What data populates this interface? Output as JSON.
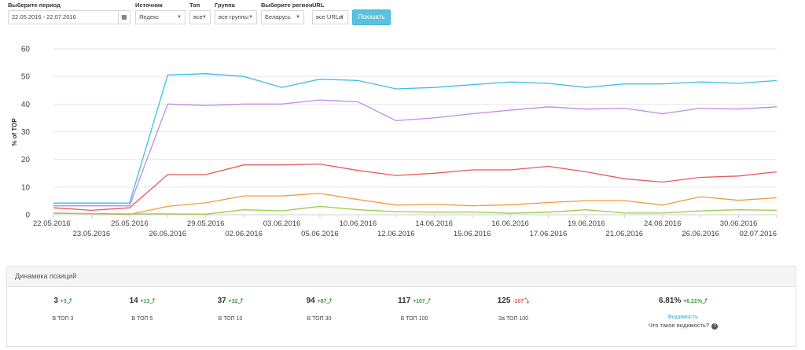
{
  "filters": {
    "period": {
      "label": "Выберите период",
      "value": "22.05.2016 - 22.07.2016"
    },
    "source": {
      "label": "Источник",
      "value": "Яндекс"
    },
    "top": {
      "label": "Топ",
      "value": "все"
    },
    "group": {
      "label": "Группа",
      "value": "все группы"
    },
    "region": {
      "label": "Выберите регион",
      "value": "Беларусь"
    },
    "url": {
      "label": "URL",
      "value": "все URLы"
    },
    "show_button": "Показать"
  },
  "chart_data": {
    "type": "line",
    "ylabel": "% of TOP",
    "ylim": [
      0,
      60
    ],
    "yticks": [
      0,
      10,
      20,
      30,
      40,
      50,
      60
    ],
    "grid": "horizontal",
    "x": [
      "22.05.2016",
      "23.05.2016",
      "25.05.2016",
      "26.05.2016",
      "29.05.2016",
      "02.06.2016",
      "03.06.2016",
      "05.06.2016",
      "10.06.2016",
      "12.06.2016",
      "14.06.2016",
      "15.06.2016",
      "16.06.2016",
      "17.06.2016",
      "19.06.2016",
      "21.06.2016",
      "24.06.2016",
      "26.06.2016",
      "30.06.2016",
      "02.07.2016"
    ],
    "series": [
      {
        "color": "#3dbfe6",
        "values": [
          4.2,
          4.2,
          4.2,
          50.5,
          51,
          50,
          46,
          49,
          48.5,
          45.5,
          46,
          47,
          48,
          47.5,
          46,
          47.3,
          47.3,
          48,
          47.5,
          48.5
        ]
      },
      {
        "color": "#c189e6",
        "values": [
          3.2,
          3.2,
          3.2,
          40,
          39.5,
          40,
          40,
          41.5,
          40.8,
          34,
          35,
          36.5,
          37.8,
          39,
          38.2,
          38.5,
          36.5,
          38.5,
          38.2,
          39
        ]
      },
      {
        "color": "#e8595a",
        "values": [
          2.5,
          1.6,
          2.5,
          14.5,
          14.5,
          18,
          18,
          18.3,
          16,
          14.2,
          15,
          16.2,
          16.2,
          17.5,
          15.5,
          13,
          11.8,
          13.5,
          14,
          15.5
        ]
      },
      {
        "color": "#f29b38",
        "values": [
          0.6,
          0.4,
          0.1,
          3,
          4.3,
          6.8,
          6.8,
          7.7,
          5.5,
          3.5,
          3.8,
          3.2,
          3.6,
          4.4,
          5.1,
          5.1,
          3.5,
          6.5,
          5.2,
          6.1
        ]
      },
      {
        "color": "#97cd45",
        "values": [
          0.5,
          0.4,
          0.3,
          0.3,
          0.2,
          1.8,
          1.4,
          3,
          1.8,
          1.1,
          0.9,
          1.0,
          0.5,
          0.9,
          1.8,
          0.6,
          0.6,
          1.4,
          1.8,
          1.6
        ]
      }
    ]
  },
  "positions": {
    "title": "Динамика позиций",
    "items": [
      {
        "value": "3",
        "delta": "+3",
        "arrow": "⤴",
        "label": "В ТОП 3",
        "dir": "pos"
      },
      {
        "value": "14",
        "delta": "+13",
        "arrow": "⤴",
        "label": "В ТОП 5",
        "dir": "pos"
      },
      {
        "value": "37",
        "delta": "+32",
        "arrow": "⤴",
        "label": "В ТОП 10",
        "dir": "pos"
      },
      {
        "value": "94",
        "delta": "+87",
        "arrow": "⤴",
        "label": "В ТОП 30",
        "dir": "pos"
      },
      {
        "value": "117",
        "delta": "+107",
        "arrow": "⤴",
        "label": "В ТОП 100",
        "dir": "pos"
      },
      {
        "value": "125",
        "delta": "-107",
        "arrow": "⤵",
        "label": "За ТОП 100",
        "dir": "neg"
      }
    ],
    "visibility": {
      "value": "6.81%",
      "delta": "+6.21%",
      "arrow": "⤴",
      "link": "Видимость",
      "question": "Что такое видимость?",
      "help_glyph": "?"
    }
  }
}
